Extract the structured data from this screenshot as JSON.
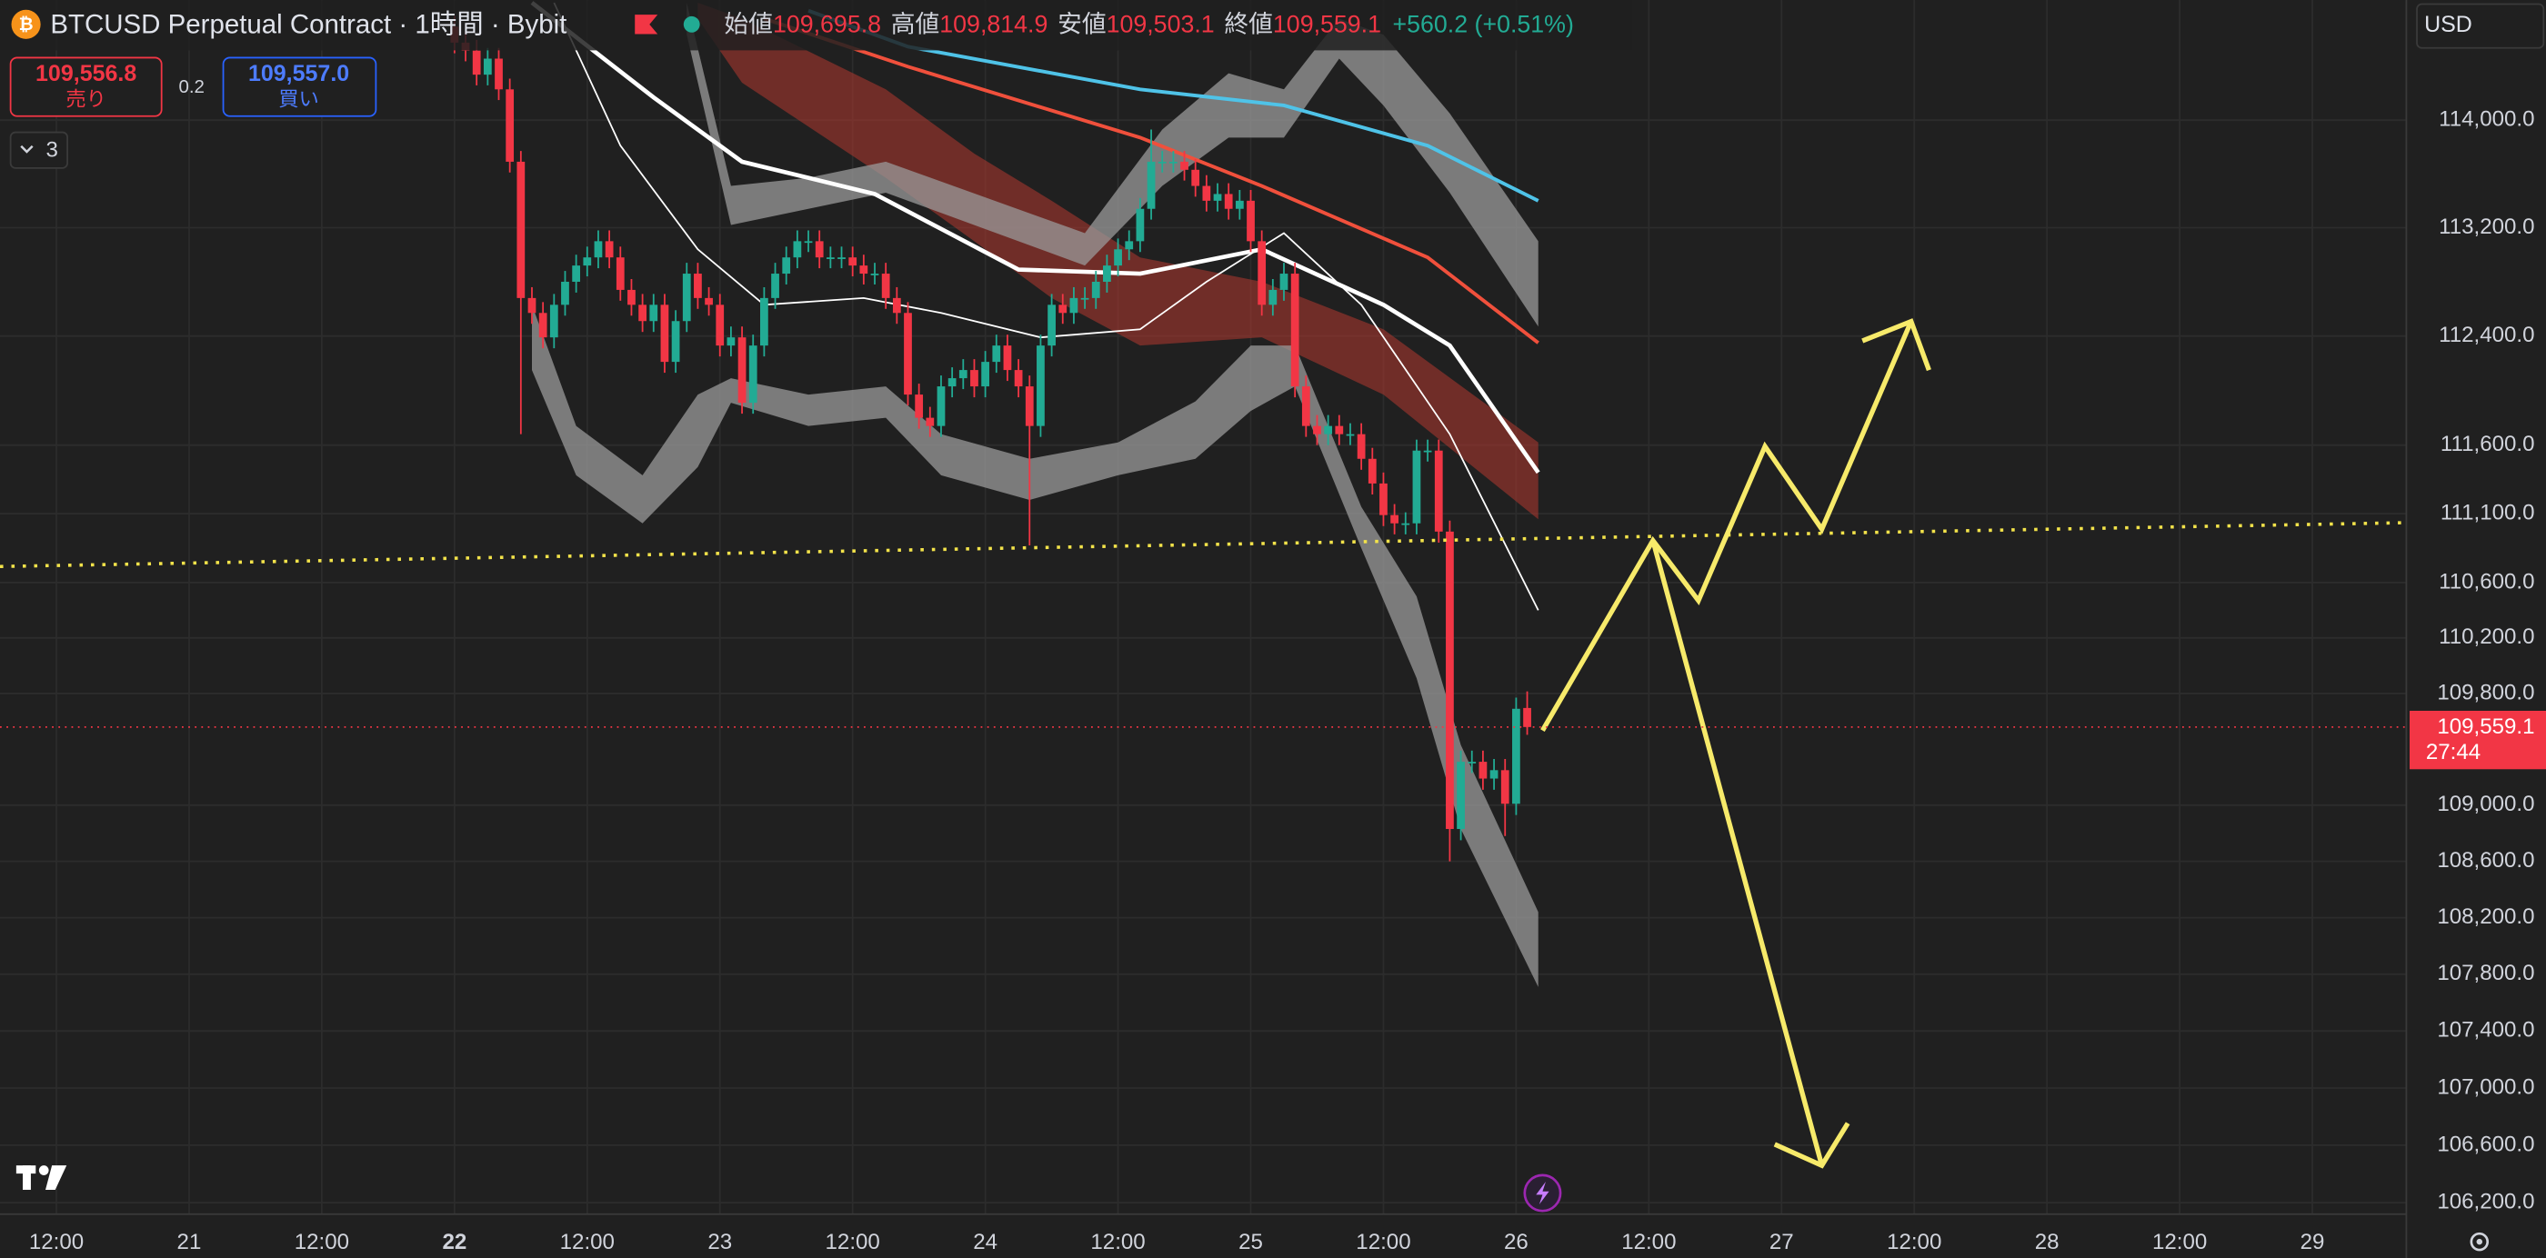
{
  "ui": {
    "title": "BTCUSD Perpetual Contract · 1時間 · Bybit",
    "legend": {
      "open_label": "始値",
      "open": "109,695.8",
      "high_label": "高値",
      "high": "109,814.9",
      "low_label": "安値",
      "low": "109,503.1",
      "close_label": "終値",
      "close": "109,559.1",
      "change": "+560.2 (+0.51%)"
    },
    "sell": {
      "price": "109,556.8",
      "label": "売り"
    },
    "spread": "0.2",
    "buy": {
      "price": "109,557.0",
      "label": "買い"
    },
    "indicators_count": "3",
    "currency": "USD"
  },
  "chart_data": {
    "type": "candlestick",
    "log_scale": true,
    "grid": true,
    "up_color": "#22ab94",
    "down_color": "#f23645",
    "last_label": "109,559.1",
    "countdown": "27:44",
    "xlim": [
      -5.1,
      212.5
    ],
    "ylim": [
      106120,
      114900
    ],
    "xticks": [
      {
        "value": 0,
        "label": "12:00"
      },
      {
        "value": 12,
        "label": "21"
      },
      {
        "value": 24,
        "label": "12:00"
      },
      {
        "value": 36,
        "label": "22"
      },
      {
        "value": 48,
        "label": "12:00"
      },
      {
        "value": 60,
        "label": "23"
      },
      {
        "value": 72,
        "label": "12:00"
      },
      {
        "value": 84,
        "label": "24"
      },
      {
        "value": 96,
        "label": "12:00"
      },
      {
        "value": 108,
        "label": "25"
      },
      {
        "value": 120,
        "label": "12:00"
      },
      {
        "value": 132,
        "label": "26"
      },
      {
        "value": 144,
        "label": "12:00"
      },
      {
        "value": 156,
        "label": "27"
      },
      {
        "value": 168,
        "label": "12:00"
      },
      {
        "value": 180,
        "label": "28"
      },
      {
        "value": 192,
        "label": "12:00"
      },
      {
        "value": 204,
        "label": "29"
      }
    ],
    "yticks": [
      {
        "value": 114000,
        "label": "114,000.0"
      },
      {
        "value": 113200,
        "label": "113,200.0"
      },
      {
        "value": 112400,
        "label": "112,400.0"
      },
      {
        "value": 111600,
        "label": "111,600.0"
      },
      {
        "value": 111100,
        "label": "111,100.0"
      },
      {
        "value": 110600,
        "label": "110,600.0"
      },
      {
        "value": 110200,
        "label": "110,200.0"
      },
      {
        "value": 109800,
        "label": "109,800.0"
      },
      {
        "value": 109000,
        "label": "109,000.0"
      },
      {
        "value": 108600,
        "label": "108,600.0"
      },
      {
        "value": 108200,
        "label": "108,200.0"
      },
      {
        "value": 107800,
        "label": "107,800.0"
      },
      {
        "value": 107400,
        "label": "107,400.0"
      },
      {
        "value": 107000,
        "label": "107,000.0"
      },
      {
        "value": 106600,
        "label": "106,600.0"
      },
      {
        "value": 106200,
        "label": "106,200.0"
      }
    ],
    "x": [
      36,
      37,
      38,
      39,
      40,
      41,
      42,
      43,
      44,
      45,
      46,
      47,
      48,
      49,
      50,
      51,
      52,
      53,
      54,
      55,
      56,
      57,
      58,
      59,
      60,
      61,
      62,
      63,
      64,
      65,
      66,
      67,
      68,
      69,
      70,
      71,
      72,
      73,
      74,
      75,
      76,
      77,
      78,
      79,
      80,
      81,
      82,
      83,
      84,
      85,
      86,
      87,
      88,
      89,
      90,
      91,
      92,
      93,
      94,
      95,
      96,
      97,
      98,
      99,
      100,
      101,
      102,
      103,
      104,
      105,
      106,
      107,
      108,
      109,
      110,
      111,
      112,
      113,
      114,
      115,
      116,
      117,
      118,
      119,
      120,
      121,
      122,
      123,
      124,
      125,
      126,
      127,
      128,
      129,
      130,
      131,
      132,
      133
    ],
    "open": [
      114700,
      114580,
      114520,
      114340,
      114460,
      114230,
      113690,
      112680,
      112570,
      112390,
      112630,
      112800,
      112920,
      112980,
      113100,
      112980,
      112740,
      112630,
      112510,
      112630,
      112210,
      112510,
      112860,
      112680,
      112630,
      112330,
      112390,
      111910,
      112330,
      112680,
      112860,
      112980,
      113100,
      113100,
      112980,
      112980,
      112980,
      112920,
      112860,
      112860,
      112680,
      112570,
      111970,
      111800,
      111740,
      112030,
      112090,
      112150,
      112030,
      112210,
      112330,
      112150,
      112030,
      111740,
      112330,
      112630,
      112570,
      112680,
      112680,
      112800,
      112920,
      113040,
      113100,
      113340,
      113690,
      113690,
      113690,
      113630,
      113510,
      113400,
      113450,
      113340,
      113400,
      113100,
      112630,
      112740,
      112860,
      112030,
      111740,
      111680,
      111740,
      111680,
      111680,
      111500,
      111320,
      111090,
      111030,
      111030,
      111560,
      111560,
      110970,
      108830,
      109310,
      109310,
      109190,
      109250,
      109010,
      109695.8
    ],
    "high": [
      114780,
      114660,
      114600,
      114540,
      114540,
      114310,
      113770,
      112760,
      112650,
      112710,
      112880,
      113000,
      113060,
      113180,
      113180,
      113060,
      112820,
      112710,
      112710,
      112710,
      112590,
      112940,
      112940,
      112760,
      112710,
      112470,
      112470,
      112410,
      112760,
      112940,
      113060,
      113180,
      113180,
      113180,
      113060,
      113060,
      113060,
      113000,
      112940,
      112940,
      112760,
      112650,
      112050,
      111880,
      112110,
      112170,
      112230,
      112230,
      112290,
      112410,
      112410,
      112230,
      112110,
      112410,
      112710,
      112710,
      112760,
      112760,
      112880,
      113000,
      113120,
      113180,
      113420,
      113930,
      113770,
      113770,
      113770,
      113710,
      113590,
      113530,
      113530,
      113480,
      113480,
      113180,
      112820,
      112940,
      112940,
      112110,
      111820,
      111820,
      111820,
      111760,
      111760,
      111580,
      111400,
      111170,
      111110,
      111640,
      111640,
      111640,
      111050,
      109390,
      109390,
      109390,
      109330,
      109330,
      109770,
      109814.9
    ],
    "low": [
      114500,
      114440,
      114260,
      114260,
      114150,
      113610,
      111680,
      112490,
      112310,
      112310,
      112550,
      112720,
      112840,
      112900,
      112900,
      112660,
      112550,
      112430,
      112430,
      112130,
      112130,
      112430,
      112600,
      112550,
      112250,
      112250,
      111830,
      111830,
      112250,
      112600,
      112780,
      112900,
      113020,
      112900,
      112900,
      112900,
      112840,
      112780,
      112780,
      112600,
      112490,
      111890,
      111720,
      111660,
      111660,
      111950,
      112010,
      111950,
      111950,
      112130,
      112070,
      111950,
      110870,
      111660,
      112250,
      112490,
      112490,
      112600,
      112600,
      112720,
      112840,
      112960,
      113020,
      113260,
      113610,
      113610,
      113550,
      113430,
      113320,
      113320,
      113260,
      113260,
      113020,
      112550,
      112550,
      112660,
      111950,
      111660,
      111600,
      111600,
      111600,
      111600,
      111420,
      111240,
      111010,
      110950,
      110950,
      110950,
      111480,
      110890,
      108600,
      108750,
      109230,
      109110,
      109110,
      108780,
      108930,
      109503.1
    ],
    "close": [
      114580,
      114520,
      114340,
      114460,
      114230,
      113690,
      112680,
      112570,
      112390,
      112630,
      112800,
      112920,
      112980,
      113100,
      112980,
      112740,
      112630,
      112510,
      112630,
      112210,
      112510,
      112860,
      112680,
      112630,
      112330,
      112390,
      111910,
      112330,
      112680,
      112860,
      112980,
      113100,
      113100,
      112980,
      112980,
      112980,
      112920,
      112860,
      112860,
      112680,
      112570,
      111970,
      111800,
      111740,
      112030,
      112090,
      112150,
      112030,
      112210,
      112330,
      112150,
      112030,
      111740,
      112330,
      112630,
      112570,
      112680,
      112680,
      112800,
      112920,
      113040,
      113100,
      113340,
      113690,
      113690,
      113690,
      113630,
      113510,
      113400,
      113450,
      113340,
      113400,
      113100,
      112630,
      112740,
      112860,
      112030,
      111740,
      111680,
      111740,
      111680,
      111680,
      111500,
      111320,
      111090,
      111030,
      111030,
      111560,
      111560,
      110970,
      108830,
      109310,
      109310,
      109190,
      109250,
      109010,
      109690,
      109559.1
    ],
    "bands": [
      {
        "color": "#b2392f",
        "opacity": 0.55,
        "x": [
          58,
          62,
          75,
          83,
          90,
          98,
          109,
          120,
          134
        ],
        "upper": [
          114880,
          114760,
          114230,
          113750,
          113400,
          112980,
          112800,
          112450,
          111620
        ],
        "lower": [
          114760,
          114280,
          113570,
          113100,
          112680,
          112330,
          112390,
          111970,
          111060
        ]
      },
      {
        "color": "#9a9a9a",
        "opacity": 0.75,
        "x": [
          57,
          61,
          68,
          75,
          93,
          100,
          106,
          111,
          116,
          120,
          126,
          134
        ],
        "upper": [
          114880,
          113510,
          113570,
          113690,
          113160,
          113930,
          114350,
          114230,
          114760,
          114640,
          114050,
          113100
        ],
        "lower": [
          114640,
          113220,
          113340,
          113460,
          112920,
          113510,
          113870,
          113870,
          114460,
          114110,
          113460,
          112470
        ]
      },
      {
        "color": "#9a9a9a",
        "opacity": 0.75,
        "x": [
          43,
          47,
          53,
          58,
          61,
          68,
          75,
          80,
          88,
          96,
          103,
          108,
          112,
          118,
          123,
          127,
          134
        ],
        "upper": [
          112630,
          111740,
          111380,
          111970,
          112090,
          111970,
          112030,
          111680,
          111500,
          111620,
          111920,
          112330,
          112330,
          111150,
          110500,
          109430,
          108240
        ],
        "lower": [
          112150,
          111380,
          111030,
          111440,
          111910,
          111740,
          111800,
          111380,
          111200,
          111380,
          111500,
          111850,
          112030,
          110850,
          109910,
          108830,
          107710
        ]
      }
    ],
    "lines": [
      {
        "color": "#4fc3e8",
        "width": 2.2,
        "x": [
          68,
          77,
          98,
          111,
          124,
          134
        ],
        "values": [
          114820,
          114550,
          114230,
          114110,
          113810,
          113400
        ]
      },
      {
        "color": "#f0503c",
        "width": 2.2,
        "x": [
          64,
          77,
          98,
          109,
          124,
          134
        ],
        "values": [
          114760,
          114400,
          113870,
          113510,
          112980,
          112350
        ]
      },
      {
        "color": "#ffffff",
        "width": 2.6,
        "x": [
          43,
          54,
          62,
          74,
          87,
          98,
          109,
          120,
          126,
          134
        ],
        "values": [
          114880,
          114170,
          113690,
          113450,
          112890,
          112860,
          113040,
          112630,
          112330,
          111400
        ]
      },
      {
        "color": "#ffffff",
        "width": 1,
        "x": [
          45,
          51,
          58,
          64,
          73,
          80,
          89,
          98,
          104,
          111,
          118,
          126,
          134
        ],
        "values": [
          114880,
          113810,
          113040,
          112630,
          112680,
          112570,
          112390,
          112450,
          112800,
          113160,
          112630,
          111680,
          110400
        ]
      }
    ]
  }
}
